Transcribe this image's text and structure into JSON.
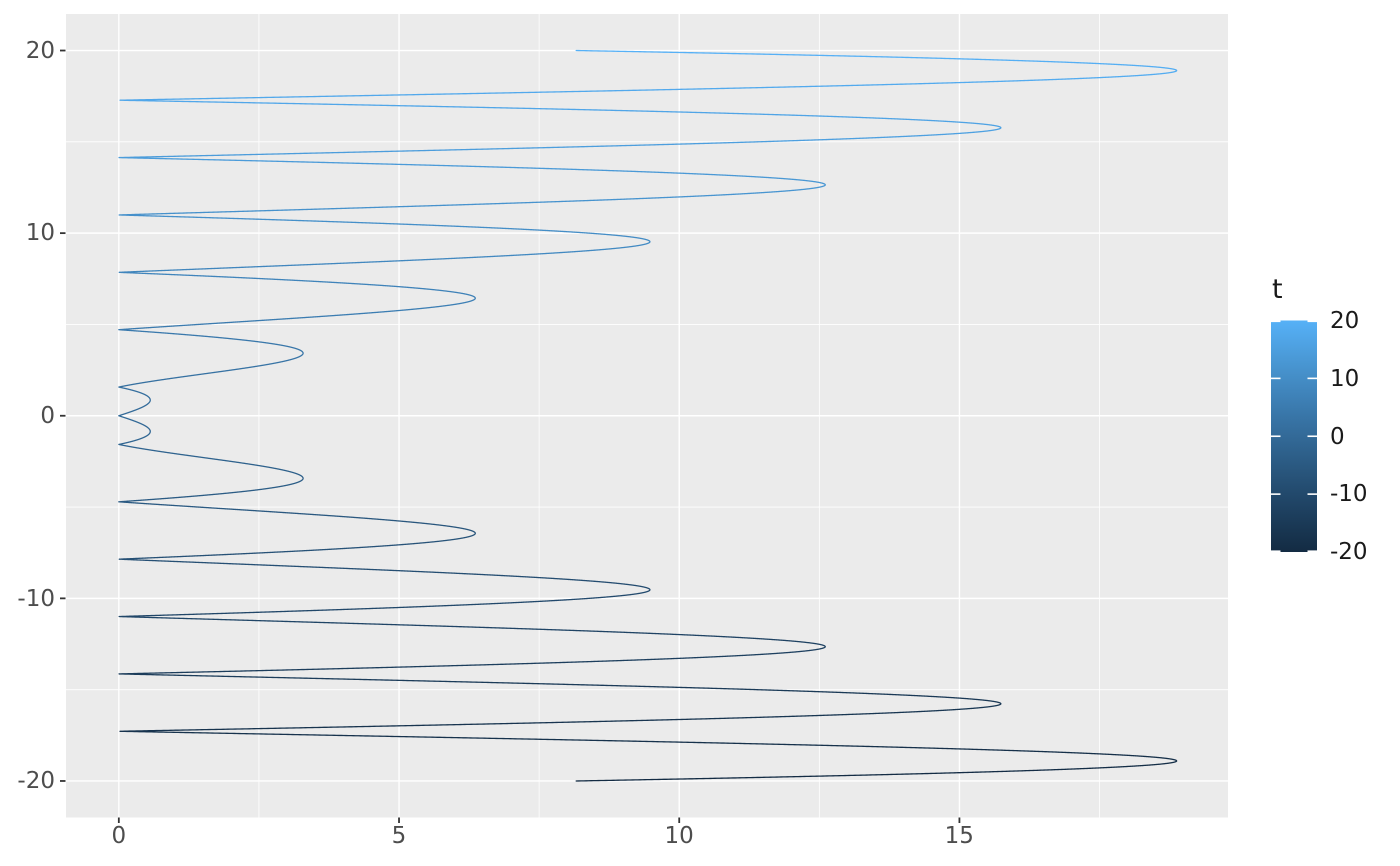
{
  "chart_data": {
    "type": "line",
    "title": "",
    "xlabel": "",
    "ylabel": "",
    "parametric": {
      "x_expr": "abs(t * cos(t))",
      "y_expr": "t",
      "t_min": -20,
      "t_max": 20,
      "samples": 16001
    },
    "color_mapping": {
      "variable": "t",
      "low": "#132B43",
      "high": "#56B1F7",
      "interpolation": "lab",
      "domain": [
        -20,
        20
      ]
    },
    "x_axis": {
      "ticks": [
        0,
        5,
        10,
        15
      ],
      "tick_labels": [
        "0",
        "5",
        "10",
        "15"
      ],
      "minor_ticks": [
        2.5,
        7.5,
        12.5,
        17.5
      ],
      "limits": [
        -0.9425,
        19.7925
      ]
    },
    "y_axis": {
      "ticks": [
        20,
        10,
        0,
        -10,
        -20
      ],
      "tick_labels": [
        "20",
        "10",
        "0",
        "-10",
        "-20"
      ],
      "minor_ticks": [
        15,
        5,
        -5,
        -15
      ],
      "limits": [
        -22,
        22
      ]
    },
    "legend": {
      "title": "t",
      "position": "right",
      "breaks": [
        20,
        10,
        0,
        -10,
        -20
      ],
      "tick_labels": [
        "20",
        "10",
        "0",
        "-10",
        "-20"
      ]
    },
    "style": {
      "panel_bg": "#EBEBEB",
      "grid_color": "#FFFFFF",
      "axis_tick_color": "#333333",
      "axis_text_color": "#4D4D4D",
      "legend_text_color": "#1a1a1a",
      "figure_bg": "#FFFFFF",
      "line_width": 1.3
    },
    "grid": "on"
  }
}
